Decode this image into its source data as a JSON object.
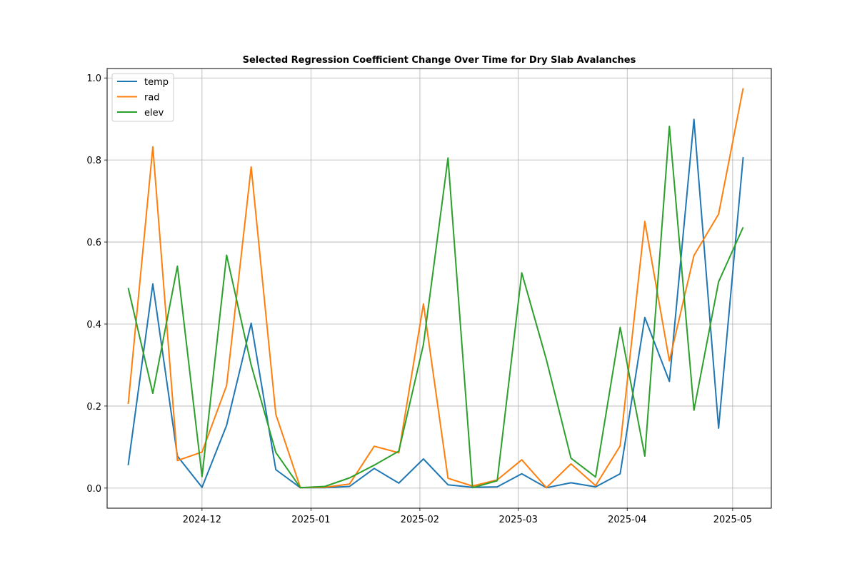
{
  "chart_data": {
    "type": "line",
    "title": "Selected Regression Coefficient Change Over Time for Dry Slab Avalanches",
    "xlabel": "",
    "ylabel": "",
    "x_axis_type": "date",
    "x_ticks": [
      "2024-12",
      "2025-01",
      "2025-02",
      "2025-03",
      "2025-04",
      "2025-05"
    ],
    "y_ticks": [
      "0.0",
      "0.2",
      "0.4",
      "0.6",
      "0.8",
      "1.0"
    ],
    "xlim": [
      "2024-11-04",
      "2025-05-12"
    ],
    "ylim": [
      -0.049,
      1.023
    ],
    "grid": true,
    "legend_position": "upper-left",
    "x": [
      "2024-11-10",
      "2024-11-17",
      "2024-11-24",
      "2024-12-01",
      "2024-12-08",
      "2024-12-15",
      "2024-12-22",
      "2024-12-29",
      "2025-01-05",
      "2025-01-12",
      "2025-01-19",
      "2025-01-26",
      "2025-02-02",
      "2025-02-09",
      "2025-02-16",
      "2025-02-23",
      "2025-03-02",
      "2025-03-09",
      "2025-03-16",
      "2025-03-23",
      "2025-03-30",
      "2025-04-06",
      "2025-04-13",
      "2025-04-20",
      "2025-04-27",
      "2025-05-04"
    ],
    "series": [
      {
        "name": "temp",
        "color": "#1f77b4",
        "values": [
          0.056,
          0.498,
          0.078,
          0.002,
          0.153,
          0.402,
          0.045,
          0.001,
          0.001,
          0.004,
          0.048,
          0.012,
          0.071,
          0.008,
          0.002,
          0.003,
          0.035,
          0.001,
          0.013,
          0.003,
          0.035,
          0.416,
          0.26,
          0.899,
          0.146,
          0.807
        ]
      },
      {
        "name": "rad",
        "color": "#ff7f0e",
        "values": [
          0.205,
          0.832,
          0.067,
          0.088,
          0.25,
          0.783,
          0.18,
          0.001,
          0.002,
          0.01,
          0.102,
          0.086,
          0.449,
          0.024,
          0.005,
          0.02,
          0.069,
          0.001,
          0.059,
          0.006,
          0.103,
          0.65,
          0.31,
          0.567,
          0.668,
          0.975
        ]
      },
      {
        "name": "elev",
        "color": "#2ca02c",
        "values": [
          0.488,
          0.231,
          0.541,
          0.028,
          0.568,
          0.3,
          0.087,
          0.001,
          0.004,
          0.025,
          0.056,
          0.09,
          0.35,
          0.805,
          0.001,
          0.018,
          0.525,
          0.313,
          0.073,
          0.027,
          0.392,
          0.078,
          0.882,
          0.19,
          0.503,
          0.636
        ]
      }
    ]
  }
}
